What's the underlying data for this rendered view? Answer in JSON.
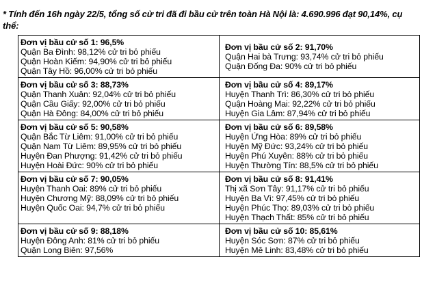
{
  "heading": "* Tính đến 16h ngày 22/5, tổng số cử tri đã đi bầu cử trên toàn Hà Nội là: 4.690.996 đạt 90,14%, cụ thể:",
  "rows": [
    {
      "left": {
        "title": "Đơn vị bầu cử số 1: 96,5%",
        "lines": [
          "Quận Ba Đình: 98,12% cử tri bỏ phiếu",
          "Quận Hoàn Kiếm: 94,90% cử tri bỏ phiếu",
          "Quận Tây Hồ: 96,00% cử tri bỏ phiếu"
        ]
      },
      "right": {
        "title": "Đơn vị bầu cử số 2: 91,70%",
        "lines": [
          "Quận Hai bà Trưng: 93,74% cử tri bỏ phiếu",
          "Quận Đống Đa: 90% cử tri bỏ phiếu"
        ]
      }
    },
    {
      "left": {
        "title": "Đơn vị bầu cử số 3: 88,73%",
        "lines": [
          "Quận Thanh Xuân: 92,04% cử tri bỏ phiếu",
          "Quận Cầu Giấy: 92,00% cử tri bỏ phiếu",
          "Quận Hà Đông: 84,00% cử tri bỏ phiếu"
        ]
      },
      "right": {
        "title": "Đơn vị bầu cử số 4: 89,17%",
        "lines": [
          "Huyện Thanh Trì: 86,30% cử tri bỏ phiếu",
          "Quận Hoàng Mai: 92,22% cử tri bỏ phiếu",
          "Huyện Gia Lâm: 87,94% cử tri bỏ phiếu"
        ]
      }
    },
    {
      "left": {
        "title": "Đơn vị bầu cử số 5: 90,58%",
        "lines": [
          "Quận Bắc Từ Liêm: 91,00% cử tri bỏ phiếu",
          "Quận Nam Từ Liêm: 89,95% cử tri bỏ phiếu",
          "Huyện Đan Phượng: 91,42% cử tri bỏ phiếu",
          "Huyện Hoài Đức: 90% cử tri bỏ phiếu"
        ]
      },
      "right": {
        "title": "Đơn vị bầu cử số 6: 89,58%",
        "lines": [
          "Huyện Ứng Hòa: 89% cử tri bỏ phiếu",
          "Huyện Mỹ Đức: 93,24% cử tri bỏ phiếu",
          "Huyện Phú Xuyên: 88% cử tri bỏ phiếu",
          "Huyện Thường Tín: 88,5% cử tri bỏ phiếu"
        ]
      }
    },
    {
      "left": {
        "title": "Đơn vị bầu cử số 7: 90,05%",
        "lines": [
          "Huyện Thanh Oai: 89% cử tri bỏ phiếu",
          "Huyện Chương Mỹ: 88,09% cử tri bỏ phiếu",
          "Huyện Quốc Oai: 94,7% cử tri bỏ phiếu"
        ]
      },
      "right": {
        "title": "Đơn vị bầu cử số 8: 91,41%",
        "lines": [
          "Thị xã Sơn Tây: 91,17% cử tri bỏ phiếu",
          "Huyện Ba Vì: 97,45% cử tri bỏ phiếu",
          "Huyện Phúc Thọ: 89,03% cử tri bỏ phiếu",
          "Huyện Thạch Thất: 85% cử tri bỏ phiếu"
        ]
      }
    },
    {
      "left": {
        "title": "Đơn vị bầu cử số 9: 88,18%",
        "lines": [
          "Huyện Đông Anh: 81% cử tri bỏ phiếu",
          "Quận Long Biên: 97,56%"
        ]
      },
      "right": {
        "title": "Đơn vị bầu cử số 10: 85,61%",
        "lines": [
          "Huyện Sóc Sơn: 87% cử tri bỏ phiếu",
          "Huyện Mê Linh: 83,48% cử tri bỏ phiếu"
        ]
      }
    }
  ]
}
